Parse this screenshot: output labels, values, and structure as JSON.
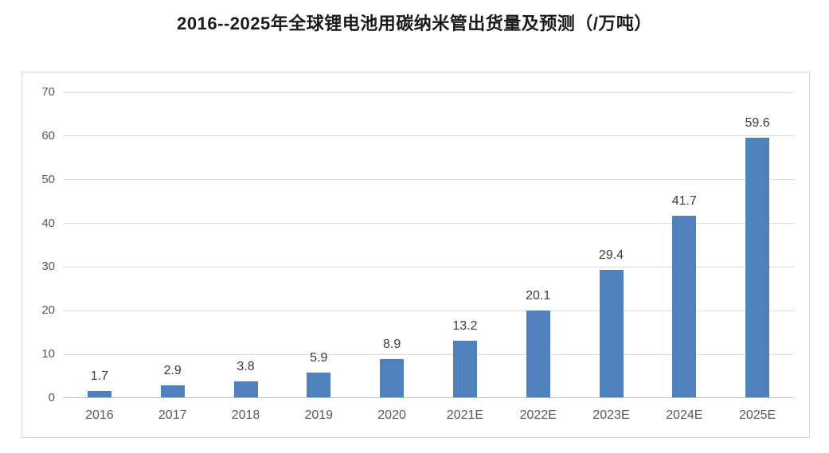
{
  "chart_data": {
    "type": "bar",
    "title": "2016--2025年全球锂电池用碳纳米管出货量及预测（/万吨）",
    "categories": [
      "2016",
      "2017",
      "2018",
      "2019",
      "2020",
      "2021E",
      "2022E",
      "2023E",
      "2024E",
      "2025E"
    ],
    "values": [
      1.7,
      2.9,
      3.8,
      5.9,
      8.9,
      13.2,
      20.1,
      29.4,
      41.7,
      59.6
    ],
    "xlabel": "",
    "ylabel": "",
    "ylim": [
      0,
      70
    ],
    "yticks": [
      0,
      10,
      20,
      30,
      40,
      50,
      60,
      70
    ],
    "grid": true,
    "legend_position": "none",
    "data_labels": true,
    "colors": {
      "bar": "#4f81bd",
      "gridline": "#dcdcdc",
      "axis_line": "#c0c0c0",
      "tick_label": "#595959",
      "value_label": "#3b3b3b",
      "title": "#1a1a1a",
      "panel_border": "#d9d9d9",
      "background": "#ffffff"
    }
  }
}
